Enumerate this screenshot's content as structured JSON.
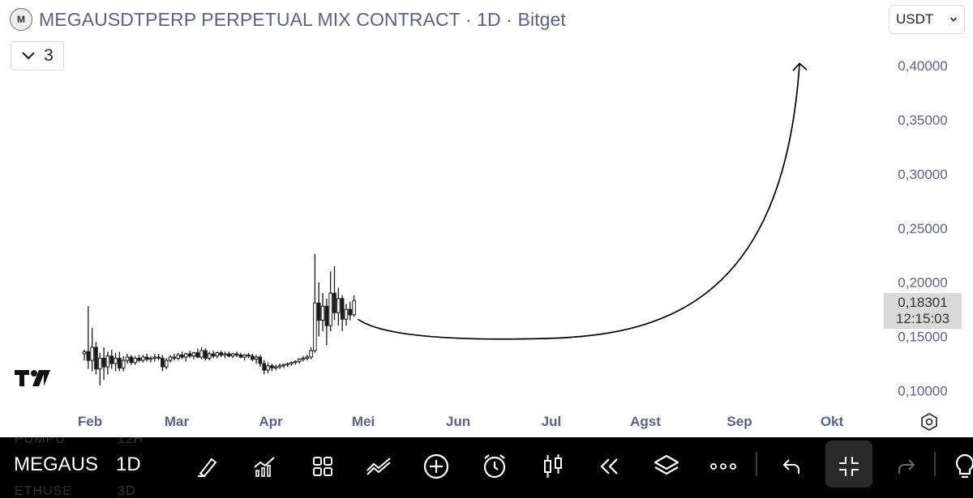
{
  "header": {
    "logo_letter": "M",
    "symbol": "MEGAUSDTPERP PERPETUAL MIX CONTRACT",
    "interval": "1D",
    "exchange": "Bitget",
    "indicator_count": "3",
    "currency": "USDT"
  },
  "price_tag": {
    "price": "0,18301",
    "countdown": "12:15:03"
  },
  "toolbar": {
    "symbol": "MEGAUS",
    "interval": "1D",
    "ghost_row_top": [
      "PUMPU",
      "12H"
    ],
    "ghost_row_bottom": [
      "ETHUSE",
      "3D"
    ],
    "icons": [
      "brush-icon",
      "indicators-icon",
      "layouts-icon",
      "compare-icon",
      "add-icon",
      "alert-icon",
      "chart-type-icon",
      "replay-icon",
      "layers-icon",
      "more-icon",
      "undo-icon",
      "minimize-icon",
      "redo-icon",
      "lightbulb-icon"
    ]
  },
  "colors": {
    "axis_text": "#5d6185",
    "candle": "#1a1a1a",
    "toolbar_bg": "#000000"
  },
  "chart_data": {
    "type": "candlestick",
    "title": "MEGAUSDTPERP PERPETUAL MIX CONTRACT · 1D · Bitget",
    "x_ticks": [
      "Feb",
      "Mar",
      "Apr",
      "Mei",
      "Jun",
      "Jul",
      "Agst",
      "Sep",
      "Okt"
    ],
    "y_ticks": [
      "0,40000",
      "0,35000",
      "0,30000",
      "0,25000",
      "0,20000",
      "0,15000",
      "0,10000"
    ],
    "y_tick_values": [
      0.4,
      0.35,
      0.3,
      0.25,
      0.2,
      0.15,
      0.1
    ],
    "ylim": [
      0.085,
      0.43
    ],
    "last_price": 0.18301,
    "candles": [
      {
        "t": 0,
        "o": 0.134,
        "h": 0.138,
        "l": 0.128,
        "c": 0.136
      },
      {
        "t": 1,
        "o": 0.136,
        "h": 0.178,
        "l": 0.12,
        "c": 0.128
      },
      {
        "t": 2,
        "o": 0.128,
        "h": 0.158,
        "l": 0.118,
        "c": 0.14
      },
      {
        "t": 3,
        "o": 0.14,
        "h": 0.145,
        "l": 0.115,
        "c": 0.12
      },
      {
        "t": 4,
        "o": 0.12,
        "h": 0.135,
        "l": 0.105,
        "c": 0.13
      },
      {
        "t": 5,
        "o": 0.13,
        "h": 0.14,
        "l": 0.11,
        "c": 0.122
      },
      {
        "t": 6,
        "o": 0.122,
        "h": 0.136,
        "l": 0.115,
        "c": 0.132
      },
      {
        "t": 7,
        "o": 0.132,
        "h": 0.138,
        "l": 0.12,
        "c": 0.125
      },
      {
        "t": 8,
        "o": 0.125,
        "h": 0.135,
        "l": 0.118,
        "c": 0.13
      },
      {
        "t": 9,
        "o": 0.13,
        "h": 0.136,
        "l": 0.118,
        "c": 0.121
      },
      {
        "t": 10,
        "o": 0.121,
        "h": 0.132,
        "l": 0.118,
        "c": 0.128
      },
      {
        "t": 11,
        "o": 0.128,
        "h": 0.134,
        "l": 0.125,
        "c": 0.131
      },
      {
        "t": 12,
        "o": 0.131,
        "h": 0.133,
        "l": 0.124,
        "c": 0.126
      },
      {
        "t": 13,
        "o": 0.126,
        "h": 0.132,
        "l": 0.124,
        "c": 0.13
      },
      {
        "t": 14,
        "o": 0.13,
        "h": 0.133,
        "l": 0.126,
        "c": 0.128
      },
      {
        "t": 15,
        "o": 0.128,
        "h": 0.133,
        "l": 0.126,
        "c": 0.131
      },
      {
        "t": 16,
        "o": 0.131,
        "h": 0.134,
        "l": 0.127,
        "c": 0.129
      },
      {
        "t": 17,
        "o": 0.129,
        "h": 0.132,
        "l": 0.126,
        "c": 0.13
      },
      {
        "t": 18,
        "o": 0.13,
        "h": 0.134,
        "l": 0.127,
        "c": 0.131
      },
      {
        "t": 19,
        "o": 0.131,
        "h": 0.134,
        "l": 0.128,
        "c": 0.13
      },
      {
        "t": 20,
        "o": 0.13,
        "h": 0.133,
        "l": 0.118,
        "c": 0.122
      },
      {
        "t": 21,
        "o": 0.122,
        "h": 0.13,
        "l": 0.12,
        "c": 0.128
      },
      {
        "t": 22,
        "o": 0.128,
        "h": 0.133,
        "l": 0.126,
        "c": 0.131
      },
      {
        "t": 23,
        "o": 0.131,
        "h": 0.134,
        "l": 0.128,
        "c": 0.13
      },
      {
        "t": 24,
        "o": 0.13,
        "h": 0.135,
        "l": 0.128,
        "c": 0.133
      },
      {
        "t": 25,
        "o": 0.133,
        "h": 0.136,
        "l": 0.129,
        "c": 0.131
      },
      {
        "t": 26,
        "o": 0.131,
        "h": 0.135,
        "l": 0.127,
        "c": 0.134
      },
      {
        "t": 27,
        "o": 0.134,
        "h": 0.137,
        "l": 0.13,
        "c": 0.132
      },
      {
        "t": 28,
        "o": 0.132,
        "h": 0.136,
        "l": 0.129,
        "c": 0.135
      },
      {
        "t": 29,
        "o": 0.135,
        "h": 0.139,
        "l": 0.13,
        "c": 0.131
      },
      {
        "t": 30,
        "o": 0.131,
        "h": 0.14,
        "l": 0.129,
        "c": 0.137
      },
      {
        "t": 31,
        "o": 0.137,
        "h": 0.139,
        "l": 0.128,
        "c": 0.13
      },
      {
        "t": 32,
        "o": 0.13,
        "h": 0.136,
        "l": 0.128,
        "c": 0.134
      },
      {
        "t": 33,
        "o": 0.134,
        "h": 0.137,
        "l": 0.13,
        "c": 0.132
      },
      {
        "t": 34,
        "o": 0.132,
        "h": 0.136,
        "l": 0.13,
        "c": 0.135
      },
      {
        "t": 35,
        "o": 0.135,
        "h": 0.137,
        "l": 0.131,
        "c": 0.133
      },
      {
        "t": 36,
        "o": 0.133,
        "h": 0.136,
        "l": 0.13,
        "c": 0.134
      },
      {
        "t": 37,
        "o": 0.134,
        "h": 0.136,
        "l": 0.131,
        "c": 0.132
      },
      {
        "t": 38,
        "o": 0.132,
        "h": 0.135,
        "l": 0.13,
        "c": 0.134
      },
      {
        "t": 39,
        "o": 0.134,
        "h": 0.136,
        "l": 0.131,
        "c": 0.133
      },
      {
        "t": 40,
        "o": 0.133,
        "h": 0.135,
        "l": 0.13,
        "c": 0.131
      },
      {
        "t": 41,
        "o": 0.131,
        "h": 0.134,
        "l": 0.128,
        "c": 0.133
      },
      {
        "t": 42,
        "o": 0.133,
        "h": 0.135,
        "l": 0.13,
        "c": 0.132
      },
      {
        "t": 43,
        "o": 0.132,
        "h": 0.134,
        "l": 0.127,
        "c": 0.129
      },
      {
        "t": 44,
        "o": 0.129,
        "h": 0.133,
        "l": 0.125,
        "c": 0.131
      },
      {
        "t": 45,
        "o": 0.131,
        "h": 0.133,
        "l": 0.122,
        "c": 0.125
      },
      {
        "t": 46,
        "o": 0.125,
        "h": 0.128,
        "l": 0.115,
        "c": 0.119
      },
      {
        "t": 47,
        "o": 0.119,
        "h": 0.126,
        "l": 0.116,
        "c": 0.123
      },
      {
        "t": 48,
        "o": 0.123,
        "h": 0.125,
        "l": 0.118,
        "c": 0.121
      },
      {
        "t": 49,
        "o": 0.121,
        "h": 0.124,
        "l": 0.119,
        "c": 0.122
      },
      {
        "t": 50,
        "o": 0.122,
        "h": 0.125,
        "l": 0.12,
        "c": 0.123
      },
      {
        "t": 51,
        "o": 0.123,
        "h": 0.125,
        "l": 0.121,
        "c": 0.124
      },
      {
        "t": 52,
        "o": 0.124,
        "h": 0.126,
        "l": 0.122,
        "c": 0.125
      },
      {
        "t": 53,
        "o": 0.125,
        "h": 0.127,
        "l": 0.123,
        "c": 0.126
      },
      {
        "t": 54,
        "o": 0.126,
        "h": 0.128,
        "l": 0.124,
        "c": 0.127
      },
      {
        "t": 55,
        "o": 0.127,
        "h": 0.13,
        "l": 0.125,
        "c": 0.129
      },
      {
        "t": 56,
        "o": 0.129,
        "h": 0.132,
        "l": 0.127,
        "c": 0.13
      },
      {
        "t": 57,
        "o": 0.13,
        "h": 0.133,
        "l": 0.128,
        "c": 0.131
      },
      {
        "t": 58,
        "o": 0.131,
        "h": 0.14,
        "l": 0.129,
        "c": 0.137
      },
      {
        "t": 59,
        "o": 0.137,
        "h": 0.226,
        "l": 0.135,
        "c": 0.181
      },
      {
        "t": 60,
        "o": 0.181,
        "h": 0.2,
        "l": 0.15,
        "c": 0.165
      },
      {
        "t": 61,
        "o": 0.165,
        "h": 0.19,
        "l": 0.155,
        "c": 0.178
      },
      {
        "t": 62,
        "o": 0.178,
        "h": 0.185,
        "l": 0.142,
        "c": 0.16
      },
      {
        "t": 63,
        "o": 0.16,
        "h": 0.21,
        "l": 0.155,
        "c": 0.19
      },
      {
        "t": 64,
        "o": 0.19,
        "h": 0.215,
        "l": 0.165,
        "c": 0.172
      },
      {
        "t": 65,
        "o": 0.172,
        "h": 0.195,
        "l": 0.16,
        "c": 0.185
      },
      {
        "t": 66,
        "o": 0.185,
        "h": 0.188,
        "l": 0.155,
        "c": 0.166
      },
      {
        "t": 67,
        "o": 0.166,
        "h": 0.18,
        "l": 0.16,
        "c": 0.175
      },
      {
        "t": 68,
        "o": 0.175,
        "h": 0.182,
        "l": 0.165,
        "c": 0.17
      },
      {
        "t": 69,
        "o": 0.17,
        "h": 0.188,
        "l": 0.168,
        "c": 0.183
      }
    ],
    "projection": {
      "from": {
        "t": 70,
        "v": 0.166
      },
      "trough": {
        "t": 116,
        "v": 0.148
      },
      "to": {
        "t": 183,
        "v": 0.402
      }
    }
  }
}
